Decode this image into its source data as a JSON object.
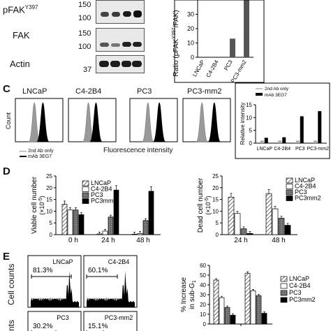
{
  "panel_b": {
    "blot_labels": [
      "pFAK",
      "FAK",
      "Actin"
    ],
    "pfak_superscript": "Y397",
    "mw_markers": [
      "150",
      "100",
      "150",
      "100",
      "37"
    ],
    "colors": {
      "band": "#1a1a1a",
      "bar": "#555555"
    }
  },
  "panel_c": {
    "letter": "C",
    "titles": [
      "LNCaP",
      "C4-2B4",
      "PC3",
      "PC3-mm2"
    ],
    "ylabel": "Count",
    "xlabel": "Fluorescence intensity",
    "legend": [
      "2nd Ab only",
      "mAb 3EG7"
    ],
    "colors": {
      "control": "#9a9a9a",
      "antibody": "#000000"
    }
  },
  "panel_d": {
    "letter": "D",
    "legend": [
      "LNCaP",
      "C4-2B4",
      "PC3",
      "PC3mm2"
    ]
  },
  "panel_e": {
    "letter": "E",
    "ylabel": "Cell counts",
    "ylabel_cut": "nts",
    "hist_titles": [
      "LNCaP",
      "C4-2B4",
      "PC3",
      "PC3-mm2"
    ],
    "percents": [
      "81.3%",
      "60.1%",
      "30.2%",
      "15.1%"
    ],
    "legend": [
      "LNCaP",
      "C4-2B4",
      "PC3",
      "PC3mm2"
    ]
  },
  "chart_data": [
    {
      "type": "bar",
      "panel": "B",
      "categories": [
        "LNCaP",
        "C4-2B4",
        "PC3",
        "PC3-mm2"
      ],
      "values": [
        0,
        0,
        13,
        40
      ],
      "ylabel": "Ratio (pFAK",
      "ylabel_sup": "Y397",
      "ylabel_tail": "/FAK)",
      "yticks": [
        "0",
        "10",
        "20",
        "30"
      ],
      "ylim": [
        0,
        40
      ]
    },
    {
      "type": "bar",
      "panel": "C",
      "categories": [
        "LNCaP",
        "C4-2B4",
        "PC3",
        "PC3-mm2"
      ],
      "series": [
        {
          "name": "2nd Ab only",
          "values": [
            1,
            1,
            1,
            1
          ]
        },
        {
          "name": "mAb 3EG7",
          "values": [
            2.1,
            2.3,
            10.5,
            12.5
          ]
        }
      ],
      "ylabel": "Relative intensity",
      "yticks": [
        "0",
        "5",
        "10",
        "15"
      ],
      "ylim": [
        0,
        15
      ]
    },
    {
      "type": "bar",
      "panel": "D-viable",
      "categories": [
        "0 h",
        "24 h",
        "48 h"
      ],
      "series": [
        {
          "name": "LNCaP",
          "values": [
            13,
            0.3,
            0.2
          ]
        },
        {
          "name": "C4-2B4",
          "values": [
            10.5,
            1.5,
            0.5
          ]
        },
        {
          "name": "PC3",
          "values": [
            10.5,
            7.5,
            6
          ]
        },
        {
          "name": "PC3mm2",
          "values": [
            8.5,
            19,
            18.5
          ]
        }
      ],
      "ylabel": "Viable cell number",
      "ylabel_unit": "(×10",
      "ylabel_exp": "-5",
      "yticks": [
        "0",
        "5",
        "10",
        "15",
        "20",
        "25"
      ],
      "ylim": [
        0,
        25
      ]
    },
    {
      "type": "bar",
      "panel": "D-dead",
      "categories": [
        "24 h",
        "48 h"
      ],
      "series": [
        {
          "name": "LNCaP",
          "values": [
            16,
            17.5
          ]
        },
        {
          "name": "C4-2B4",
          "values": [
            9,
            11
          ]
        },
        {
          "name": "PC3",
          "values": [
            2.5,
            7
          ]
        },
        {
          "name": "PC3mm2",
          "values": [
            0.5,
            4
          ]
        }
      ],
      "ylabel": "Dead cell number",
      "ylabel_unit": "(×10",
      "ylabel_exp": "-5",
      "yticks": [
        "0",
        "5",
        "10",
        "15",
        "20",
        "25"
      ],
      "ylim": [
        0,
        25
      ]
    },
    {
      "type": "bar",
      "panel": "E",
      "categories": [
        "",
        ""
      ],
      "series": [
        {
          "name": "LNCaP",
          "values": [
            45,
            52
          ]
        },
        {
          "name": "C4-2B4",
          "values": [
            27,
            34
          ]
        },
        {
          "name": "PC3",
          "values": [
            17,
            29
          ]
        },
        {
          "name": "PC3mm2",
          "values": [
            9,
            11
          ]
        }
      ],
      "ylabel": "% Increase",
      "ylabel2": "in sub-G",
      "ylabel2_sub": "1",
      "yticks": [
        "0",
        "10",
        "20",
        "30",
        "40",
        "50",
        "60"
      ],
      "ylim": [
        0,
        60
      ]
    }
  ]
}
